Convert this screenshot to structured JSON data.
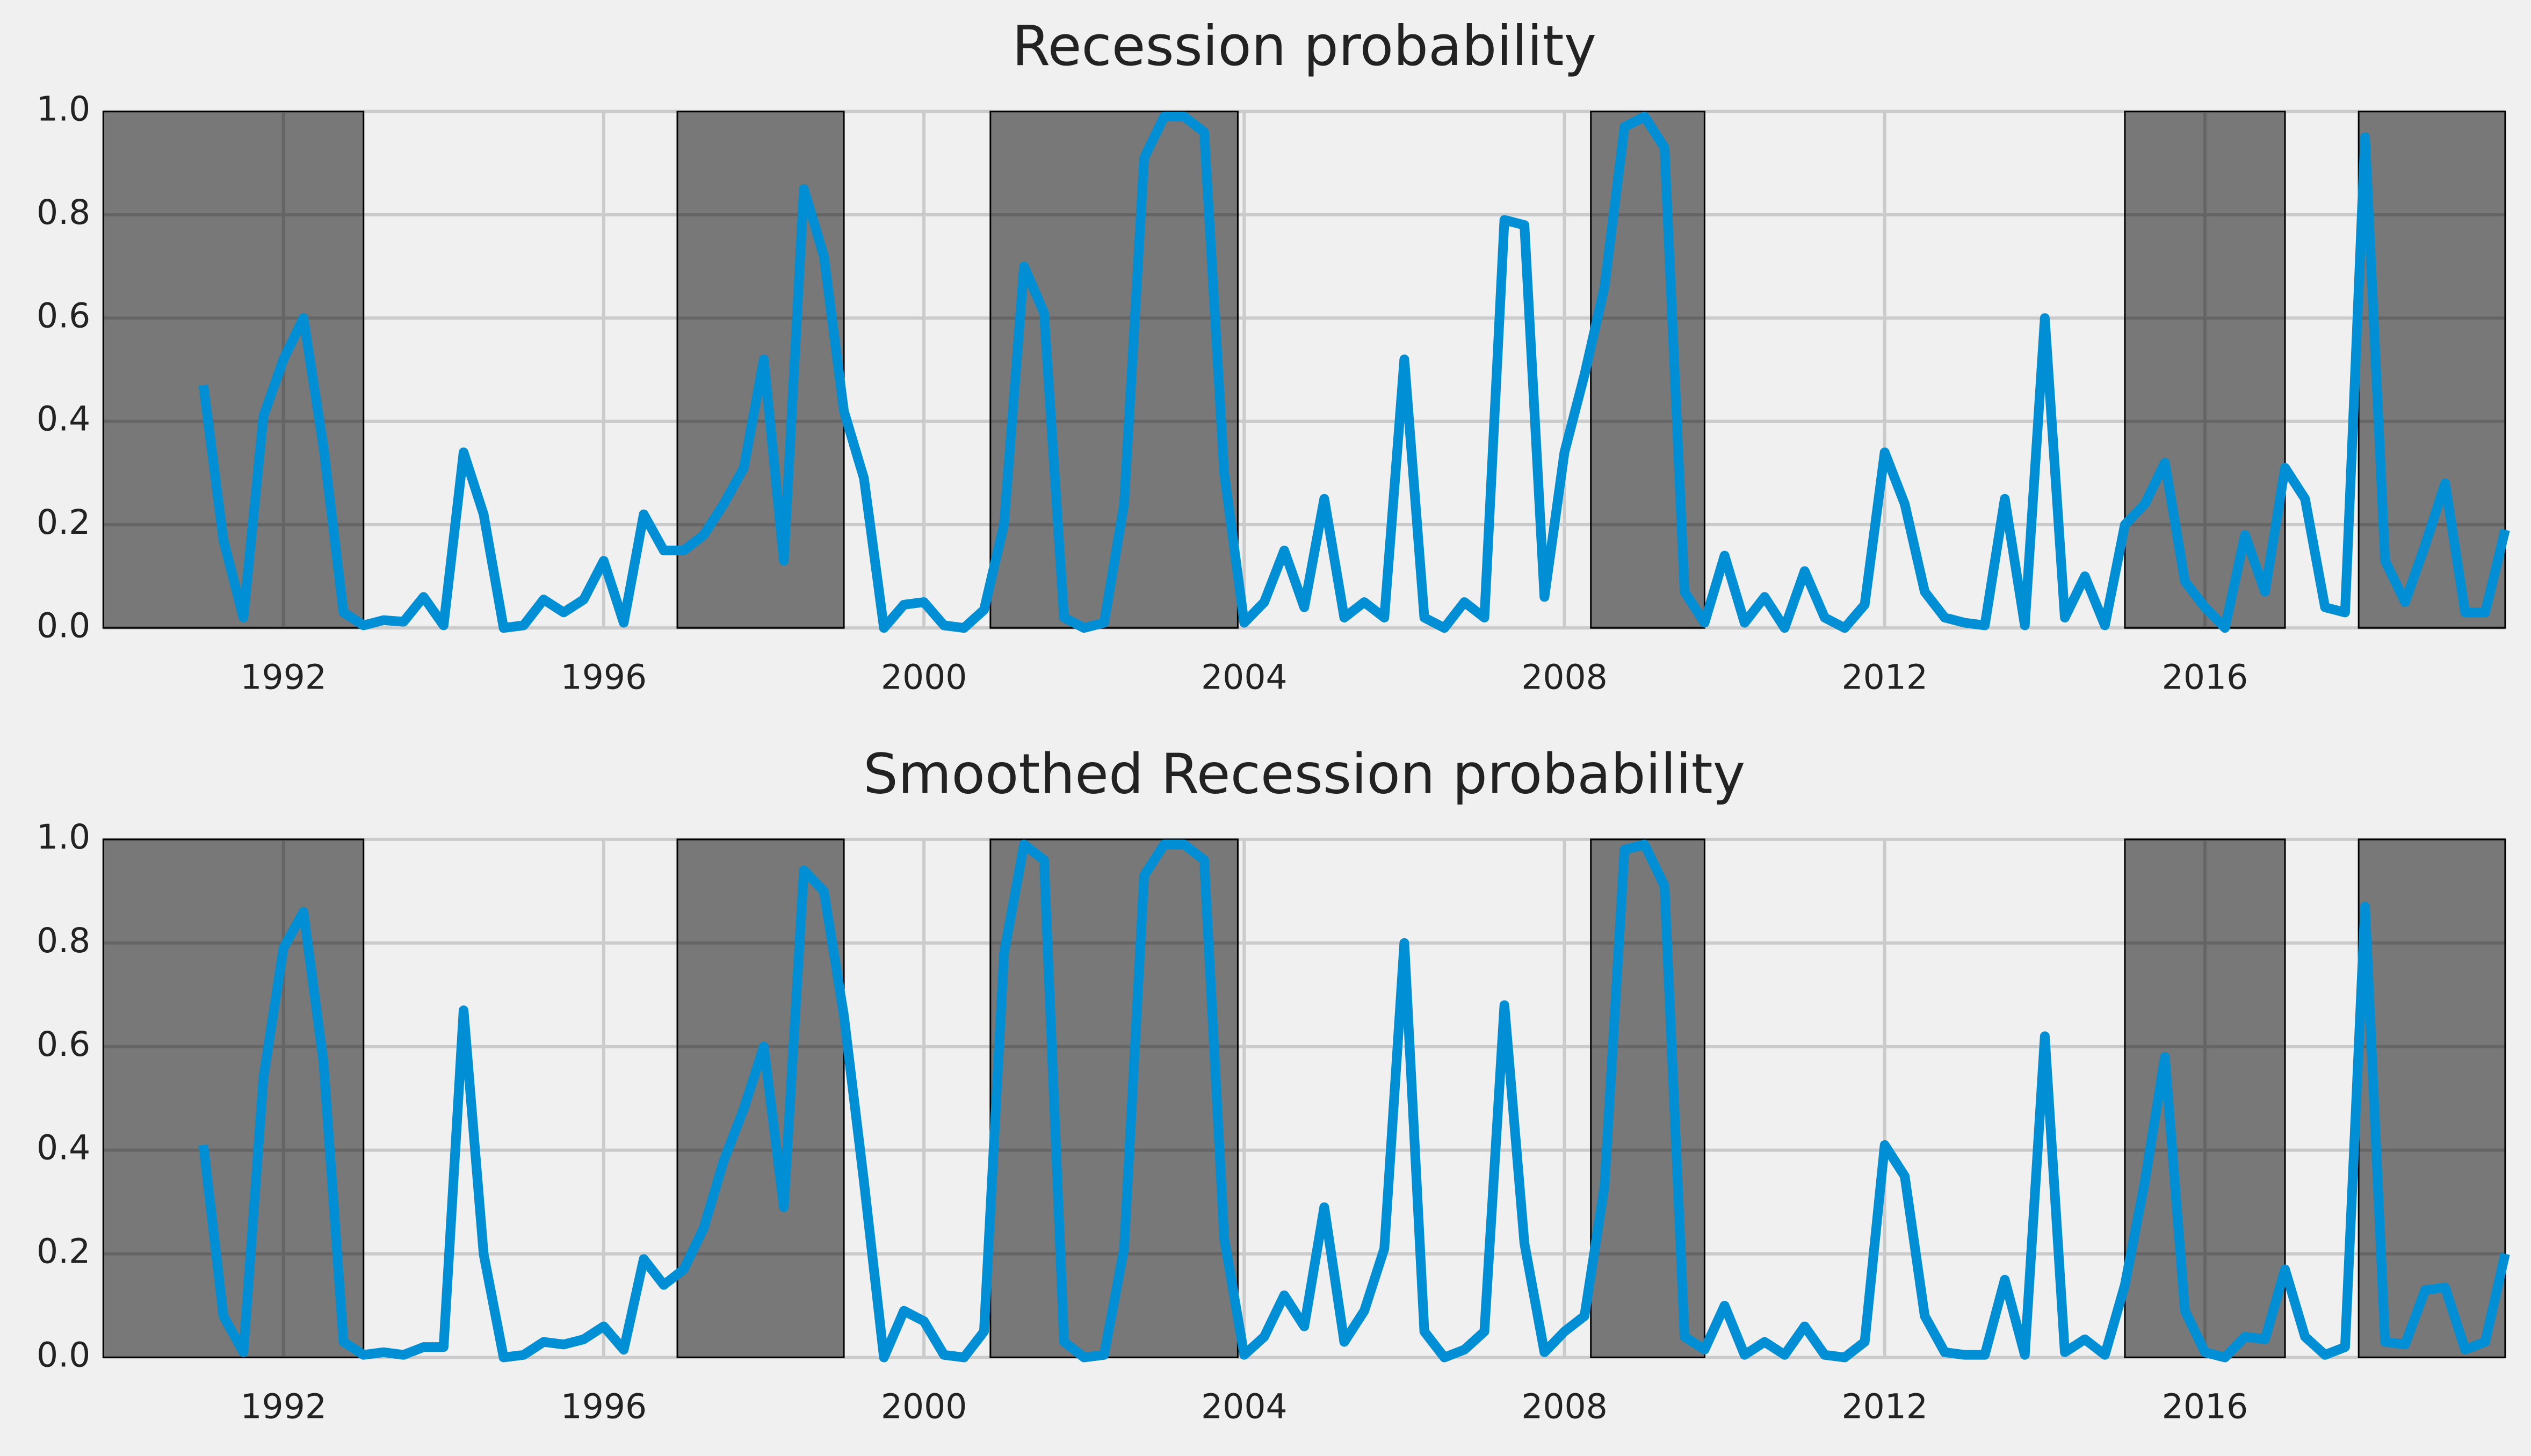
{
  "chart_data": [
    {
      "type": "line",
      "title": "Recession probability",
      "x": [
        1991.0,
        1991.25,
        1991.5,
        1991.75,
        1992.0,
        1992.25,
        1992.5,
        1992.75,
        1993.0,
        1993.25,
        1993.5,
        1993.75,
        1994.0,
        1994.25,
        1994.5,
        1994.75,
        1995.0,
        1995.25,
        1995.5,
        1995.75,
        1996.0,
        1996.25,
        1996.5,
        1996.75,
        1997.0,
        1997.25,
        1997.5,
        1997.75,
        1998.0,
        1998.25,
        1998.5,
        1998.75,
        1999.0,
        1999.25,
        1999.5,
        1999.75,
        2000.0,
        2000.25,
        2000.5,
        2000.75,
        2001.0,
        2001.25,
        2001.5,
        2001.75,
        2002.0,
        2002.25,
        2002.5,
        2002.75,
        2003.0,
        2003.25,
        2003.5,
        2003.75,
        2004.0,
        2004.25,
        2004.5,
        2004.75,
        2005.0,
        2005.25,
        2005.5,
        2005.75,
        2006.0,
        2006.25,
        2006.5,
        2006.75,
        2007.0,
        2007.25,
        2007.5,
        2007.75,
        2008.0,
        2008.25,
        2008.5,
        2008.75,
        2009.0,
        2009.25,
        2009.5,
        2009.75,
        2010.0,
        2010.25,
        2010.5,
        2010.75,
        2011.0,
        2011.25,
        2011.5,
        2011.75,
        2012.0,
        2012.25,
        2012.5,
        2012.75,
        2013.0,
        2013.25,
        2013.5,
        2013.75,
        2014.0,
        2014.25,
        2014.5,
        2014.75,
        2015.0,
        2015.25,
        2015.5,
        2015.75,
        2016.0,
        2016.25,
        2016.5,
        2016.75,
        2017.0,
        2017.25,
        2017.5,
        2017.75,
        2018.0,
        2018.25,
        2018.5,
        2018.75,
        2019.0,
        2019.25,
        2019.5,
        2019.75
      ],
      "series": [
        {
          "color": "#008fd5",
          "values": [
            0.47,
            0.17,
            0.02,
            0.41,
            0.52,
            0.6,
            0.35,
            0.03,
            0.005,
            0.015,
            0.012,
            0.06,
            0.005,
            0.34,
            0.22,
            0.0,
            0.005,
            0.055,
            0.03,
            0.055,
            0.13,
            0.01,
            0.22,
            0.15,
            0.15,
            0.18,
            0.24,
            0.31,
            0.52,
            0.13,
            0.85,
            0.72,
            0.42,
            0.29,
            0.0,
            0.045,
            0.05,
            0.005,
            0.0,
            0.035,
            0.2,
            0.7,
            0.61,
            0.02,
            0.0,
            0.01,
            0.24,
            0.91,
            0.99,
            0.99,
            0.96,
            0.3,
            0.01,
            0.05,
            0.15,
            0.04,
            0.25,
            0.02,
            0.05,
            0.02,
            0.52,
            0.02,
            0.0,
            0.05,
            0.02,
            0.79,
            0.78,
            0.06,
            0.34,
            0.49,
            0.66,
            0.97,
            0.99,
            0.93,
            0.07,
            0.01,
            0.14,
            0.01,
            0.06,
            0.0,
            0.11,
            0.02,
            0.0,
            0.045,
            0.34,
            0.24,
            0.07,
            0.02,
            0.01,
            0.005,
            0.25,
            0.005,
            0.6,
            0.02,
            0.1,
            0.005,
            0.2,
            0.24,
            0.32,
            0.09,
            0.04,
            0.0,
            0.18,
            0.07,
            0.31,
            0.25,
            0.04,
            0.03,
            0.95,
            0.13,
            0.05,
            0.16,
            0.28,
            0.03,
            0.03,
            0.19
          ]
        }
      ],
      "bands": [
        [
          1989.75,
          1993.0
        ],
        [
          1996.92,
          1999.0
        ],
        [
          2000.83,
          2003.92
        ],
        [
          2008.33,
          2009.75
        ],
        [
          2015.0,
          2017.0
        ],
        [
          2017.92,
          2019.75
        ]
      ],
      "band_color": "#000000",
      "xlim": [
        1989.75,
        2019.75
      ],
      "xticks": [
        1992,
        1996,
        2000,
        2004,
        2008,
        2012,
        2016
      ],
      "ylim": [
        0,
        1
      ],
      "yticks": [
        {
          "value": 0,
          "label": "0.0"
        },
        0.2,
        0.4,
        0.6,
        0.8,
        {
          "value": 1,
          "label": "1.0"
        }
      ],
      "grid": true
    },
    {
      "type": "line",
      "title": "Smoothed Recession probability",
      "x": [
        1991.0,
        1991.25,
        1991.5,
        1991.75,
        1992.0,
        1992.25,
        1992.5,
        1992.75,
        1993.0,
        1993.25,
        1993.5,
        1993.75,
        1994.0,
        1994.25,
        1994.5,
        1994.75,
        1995.0,
        1995.25,
        1995.5,
        1995.75,
        1996.0,
        1996.25,
        1996.5,
        1996.75,
        1997.0,
        1997.25,
        1997.5,
        1997.75,
        1998.0,
        1998.25,
        1998.5,
        1998.75,
        1999.0,
        1999.25,
        1999.5,
        1999.75,
        2000.0,
        2000.25,
        2000.5,
        2000.75,
        2001.0,
        2001.25,
        2001.5,
        2001.75,
        2002.0,
        2002.25,
        2002.5,
        2002.75,
        2003.0,
        2003.25,
        2003.5,
        2003.75,
        2004.0,
        2004.25,
        2004.5,
        2004.75,
        2005.0,
        2005.25,
        2005.5,
        2005.75,
        2006.0,
        2006.25,
        2006.5,
        2006.75,
        2007.0,
        2007.25,
        2007.5,
        2007.75,
        2008.0,
        2008.25,
        2008.5,
        2008.75,
        2009.0,
        2009.25,
        2009.5,
        2009.75,
        2010.0,
        2010.25,
        2010.5,
        2010.75,
        2011.0,
        2011.25,
        2011.5,
        2011.75,
        2012.0,
        2012.25,
        2012.5,
        2012.75,
        2013.0,
        2013.25,
        2013.5,
        2013.75,
        2014.0,
        2014.25,
        2014.5,
        2014.75,
        2015.0,
        2015.25,
        2015.5,
        2015.75,
        2016.0,
        2016.25,
        2016.5,
        2016.75,
        2017.0,
        2017.25,
        2017.5,
        2017.75,
        2018.0,
        2018.25,
        2018.5,
        2018.75,
        2019.0,
        2019.25,
        2019.5,
        2019.75
      ],
      "series": [
        {
          "color": "#008fd5",
          "values": [
            0.41,
            0.08,
            0.01,
            0.54,
            0.79,
            0.86,
            0.57,
            0.03,
            0.005,
            0.01,
            0.005,
            0.02,
            0.02,
            0.67,
            0.2,
            0.0,
            0.005,
            0.03,
            0.025,
            0.035,
            0.06,
            0.015,
            0.19,
            0.14,
            0.17,
            0.25,
            0.38,
            0.48,
            0.6,
            0.29,
            0.94,
            0.9,
            0.66,
            0.34,
            0.0,
            0.09,
            0.07,
            0.005,
            0.0,
            0.05,
            0.78,
            0.99,
            0.96,
            0.03,
            0.0,
            0.005,
            0.21,
            0.93,
            0.99,
            0.99,
            0.96,
            0.23,
            0.005,
            0.04,
            0.12,
            0.06,
            0.29,
            0.03,
            0.09,
            0.21,
            0.8,
            0.05,
            0.0,
            0.015,
            0.05,
            0.68,
            0.22,
            0.01,
            0.05,
            0.08,
            0.33,
            0.98,
            0.99,
            0.91,
            0.04,
            0.015,
            0.1,
            0.005,
            0.03,
            0.005,
            0.06,
            0.005,
            0.0,
            0.03,
            0.41,
            0.35,
            0.08,
            0.01,
            0.005,
            0.005,
            0.15,
            0.005,
            0.62,
            0.01,
            0.035,
            0.005,
            0.14,
            0.34,
            0.58,
            0.09,
            0.01,
            0.0,
            0.04,
            0.035,
            0.17,
            0.04,
            0.005,
            0.02,
            0.87,
            0.03,
            0.025,
            0.13,
            0.135,
            0.015,
            0.03,
            0.2
          ]
        }
      ],
      "bands": [
        [
          1989.75,
          1993.0
        ],
        [
          1996.92,
          1999.0
        ],
        [
          2000.83,
          2003.92
        ],
        [
          2008.33,
          2009.75
        ],
        [
          2015.0,
          2017.0
        ],
        [
          2017.92,
          2019.75
        ]
      ],
      "band_color": "#000000",
      "xlim": [
        1989.75,
        2019.75
      ],
      "xticks": [
        1992,
        1996,
        2000,
        2004,
        2008,
        2012,
        2016
      ],
      "ylim": [
        0,
        1
      ],
      "yticks": [
        {
          "value": 0,
          "label": "0.0"
        },
        0.2,
        0.4,
        0.6,
        0.8,
        {
          "value": 1,
          "label": "1.0"
        }
      ],
      "grid": true
    }
  ]
}
